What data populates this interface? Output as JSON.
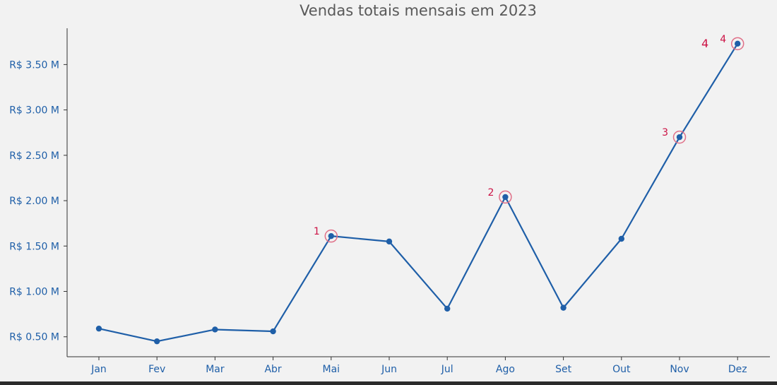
{
  "chart_data": {
    "type": "line",
    "title": "Vendas totais mensais em 2023",
    "xlabel": "",
    "ylabel": "",
    "categories": [
      "Jan",
      "Fev",
      "Mar",
      "Abr",
      "Mai",
      "Jun",
      "Jul",
      "Ago",
      "Set",
      "Out",
      "Nov",
      "Dez"
    ],
    "series": [
      {
        "values": [
          0.59,
          0.45,
          0.58,
          0.56,
          1.61,
          1.55,
          0.81,
          2.04,
          0.82,
          1.58,
          2.7,
          3.73
        ]
      }
    ],
    "ylim": [
      0.28,
      3.9
    ],
    "yticks": [
      0.5,
      1.0,
      1.5,
      2.0,
      2.5,
      3.0,
      3.5
    ],
    "ytick_labels": [
      "R$ 0.50 M",
      "R$ 1.00 M",
      "R$ 1.50 M",
      "R$ 2.00 M",
      "R$ 2.50 M",
      "R$ 3.00 M",
      "R$ 3.50 M"
    ],
    "annotations": [
      {
        "text": "1",
        "category": "Mai"
      },
      {
        "text": "2",
        "category": "Ago"
      },
      {
        "text": "3",
        "category": "Nov"
      },
      {
        "text": "4",
        "category": "Dez"
      }
    ],
    "extra_annotation": {
      "text": "4",
      "category": "Dez"
    },
    "grid": false,
    "colors": {
      "line": "#1f5fa8",
      "marker": "#1f5fa8",
      "highlight_circle": "#e07088",
      "annotation_text": "#cc1144",
      "axis": "#333333",
      "title": "#595959",
      "background": "#f2f2f2"
    }
  }
}
